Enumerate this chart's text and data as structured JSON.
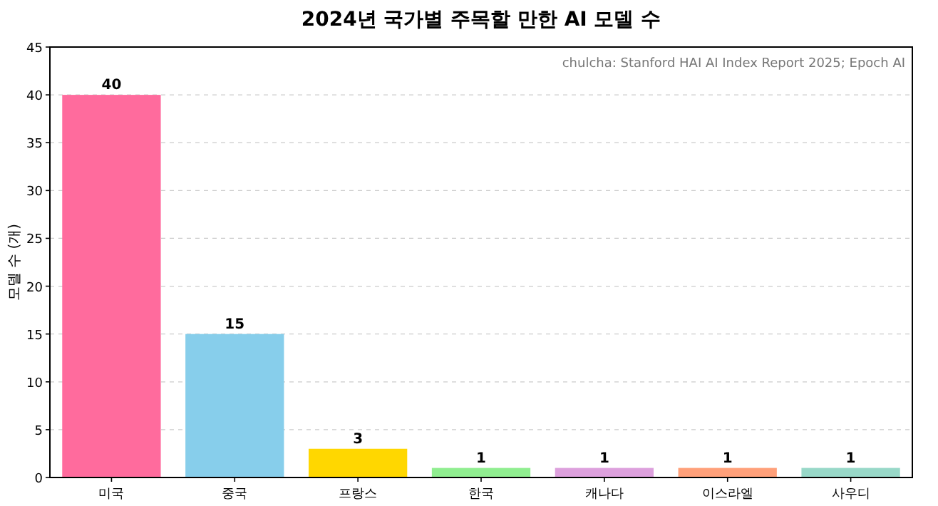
{
  "chart_data": {
    "type": "bar",
    "title": "2024년 국가별 주목할 만한 AI 모델 수",
    "ylabel": "모델 수 (개)",
    "categories": [
      "미국",
      "중국",
      "프랑스",
      "한국",
      "캐나다",
      "이스라엘",
      "사우디"
    ],
    "values": [
      40,
      15,
      3,
      1,
      1,
      1,
      1
    ],
    "colors": [
      "#ff6b9d",
      "#87ceeb",
      "#ffd700",
      "#90ee90",
      "#dda0dd",
      "#ffa07a",
      "#98d8c8"
    ],
    "ylim": [
      0,
      45
    ],
    "yticks": [
      0,
      5,
      10,
      15,
      20,
      25,
      30,
      35,
      40,
      45
    ],
    "grid": "y",
    "data_labels": true,
    "annotations": [
      "chulcha: Stanford HAI AI Index Report 2025; Epoch AI"
    ]
  }
}
